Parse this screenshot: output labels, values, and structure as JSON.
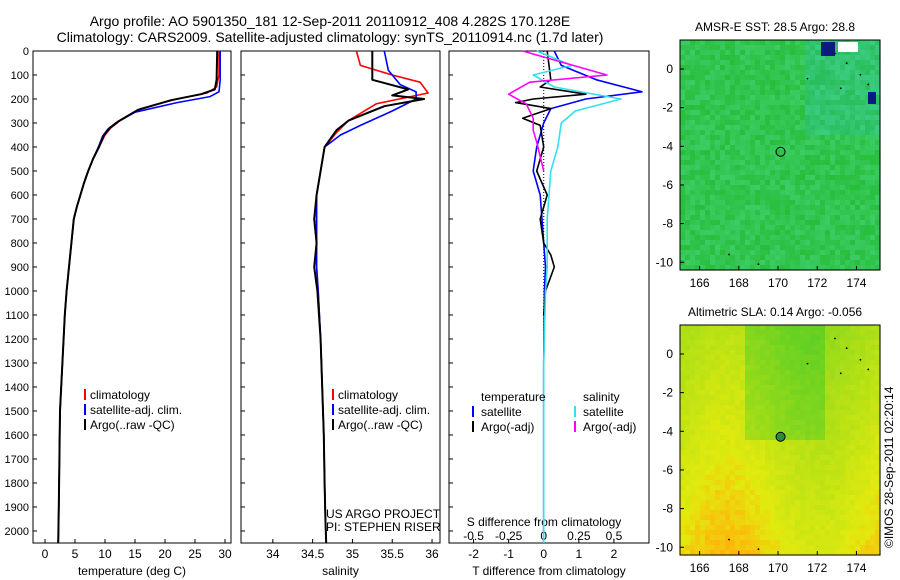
{
  "header": {
    "line1": "Argo profile: AO 5901350_181 12-Sep-2011 20110912_408 4.282S 170.128E",
    "line2": "Climatology: CARS2009. Satellite-adjusted climatology: synTS_20110914.nc (1.7d later)"
  },
  "side_stamp": "©IMOS 28-Sep-2011 02:20:14",
  "colors": {
    "climatology": "#ff0000",
    "satellite": "#0000ff",
    "argo": "#000000",
    "sal_sat": "#33e0f0",
    "sal_argo": "#ff00ff"
  },
  "panel_texts": {
    "project": "US ARGO PROJECT",
    "pi": "PI: STEPHEN RISER",
    "diff_head_temp": "temperature",
    "diff_head_sal": "salinity",
    "diff_sat": "satellite",
    "diff_argo": "Argo(-adj)"
  },
  "chart_data": [
    {
      "type": "line",
      "xlabel": "temperature (deg C)",
      "ylabel": "",
      "xlim": [
        -2,
        31
      ],
      "ylim": [
        2050,
        0
      ],
      "xticks": [
        0,
        5,
        10,
        15,
        20,
        25,
        30
      ],
      "yticks": [
        0,
        100,
        200,
        300,
        400,
        500,
        600,
        700,
        800,
        900,
        1000,
        1100,
        1200,
        1300,
        1400,
        1500,
        1600,
        1700,
        1800,
        1900,
        2000
      ],
      "legend": [
        "climatology",
        "satellite-adj. clim.",
        "Argo(..raw -QC)"
      ],
      "series": [
        {
          "name": "climatology",
          "x": [
            29,
            29,
            28.6,
            27,
            22,
            16,
            12.5,
            11,
            10,
            9,
            8,
            7.2,
            6.5,
            5.9,
            5.3,
            4.8,
            4.4,
            4,
            3.6,
            3.3,
            3.1,
            2.9,
            2.7,
            2.5,
            2.4,
            2.3,
            2.2
          ],
          "y": [
            0,
            100,
            150,
            175,
            200,
            240,
            290,
            320,
            350,
            400,
            450,
            500,
            550,
            600,
            650,
            700,
            800,
            900,
            1000,
            1100,
            1200,
            1300,
            1400,
            1500,
            1700,
            1900,
            2050
          ]
        },
        {
          "name": "satellite-adj. clim.",
          "x": [
            29.2,
            29.2,
            29,
            27.5,
            22,
            15,
            11.8,
            10.5,
            9.6,
            8.9,
            8,
            7.2,
            6.5,
            5.9,
            5.3,
            4.8,
            4.4,
            4,
            3.6,
            3.3,
            3.1,
            2.9,
            2.7,
            2.5,
            2.4,
            2.3,
            2.2
          ],
          "y": [
            0,
            120,
            170,
            190,
            215,
            255,
            300,
            325,
            355,
            400,
            450,
            500,
            550,
            600,
            650,
            700,
            800,
            900,
            1000,
            1100,
            1200,
            1300,
            1400,
            1500,
            1700,
            1900,
            2050
          ]
        },
        {
          "name": "Argo(..raw -QC)",
          "x": [
            28.7,
            28.6,
            28.3,
            26,
            21,
            15.5,
            12.3,
            10.8,
            9.8,
            9,
            8,
            7.2,
            6.5,
            5.9,
            5.3,
            4.8,
            4.4,
            4,
            3.6,
            3.3,
            3.1,
            2.9,
            2.7,
            2.5,
            2.4,
            2.3,
            2.2
          ],
          "y": [
            0,
            120,
            160,
            180,
            205,
            245,
            292,
            320,
            352,
            400,
            450,
            500,
            550,
            600,
            650,
            700,
            800,
            900,
            1000,
            1100,
            1200,
            1300,
            1400,
            1500,
            1700,
            1900,
            2050
          ]
        }
      ]
    },
    {
      "type": "line",
      "xlabel": "salinity",
      "xlim": [
        33.6,
        36.1
      ],
      "ylim": [
        2050,
        0
      ],
      "xticks": [
        34,
        34.5,
        35,
        35.5,
        36
      ],
      "legend": [
        "climatology",
        "satellite-adj. clim.",
        "Argo(..raw -QC)"
      ],
      "series": [
        {
          "name": "climatology",
          "x": [
            35.05,
            35.1,
            35.5,
            35.85,
            35.95,
            35.3,
            34.95,
            34.8,
            34.65,
            34.6,
            34.55,
            34.55,
            34.55,
            34.55,
            34.57,
            34.6,
            34.62,
            34.64,
            34.65,
            34.66,
            34.67
          ],
          "y": [
            0,
            60,
            100,
            130,
            175,
            220,
            290,
            340,
            400,
            500,
            600,
            700,
            800,
            900,
            1000,
            1200,
            1400,
            1600,
            1800,
            1950,
            2050
          ]
        },
        {
          "name": "satellite-adj. clim.",
          "x": [
            35.4,
            35.45,
            35.6,
            35.8,
            35.8,
            35.5,
            35.1,
            34.85,
            34.65,
            34.6,
            34.55,
            34.55,
            34.55,
            34.55,
            34.57,
            34.6,
            34.62,
            34.64,
            34.65,
            34.66,
            34.67
          ],
          "y": [
            0,
            80,
            140,
            170,
            200,
            250,
            310,
            350,
            400,
            500,
            600,
            700,
            800,
            900,
            1000,
            1200,
            1400,
            1600,
            1800,
            1950,
            2050
          ]
        },
        {
          "name": "Argo(..raw -QC)",
          "x": [
            35.25,
            35.25,
            35.7,
            35.5,
            35.9,
            35.4,
            34.95,
            34.8,
            34.65,
            34.6,
            34.55,
            34.52,
            34.55,
            34.52,
            34.56,
            34.6,
            34.62,
            34.64,
            34.65,
            34.66,
            34.67
          ],
          "y": [
            0,
            120,
            160,
            185,
            200,
            230,
            290,
            330,
            400,
            500,
            600,
            700,
            800,
            900,
            1000,
            1200,
            1400,
            1600,
            1800,
            1950,
            2050
          ]
        }
      ]
    },
    {
      "type": "line",
      "xlabel": "T difference from climatology",
      "xlabel2": "S difference from climatology",
      "xlim": [
        -2.7,
        3.0
      ],
      "ylim": [
        2050,
        0
      ],
      "xticks": [
        -2,
        -1,
        0,
        1,
        2
      ],
      "xticks_s": [
        "-0.5",
        "-0.25",
        "0",
        "0.25",
        "0.5"
      ],
      "legend": [
        "satellite",
        "Argo(-adj)",
        "satellite",
        "Argo(-adj)"
      ],
      "series": [
        {
          "name": "satellite",
          "x": [
            0.3,
            0.5,
            1.5,
            2.8,
            1.2,
            0.2,
            0,
            -0.2,
            -0.3,
            -0.1,
            -0.05,
            0,
            0.05,
            0.02,
            0,
            0,
            0
          ],
          "y": [
            0,
            60,
            120,
            170,
            200,
            240,
            300,
            400,
            500,
            600,
            700,
            800,
            900,
            1000,
            1300,
            1600,
            2050
          ]
        },
        {
          "name": "Argo(-adj)",
          "x": [
            0.1,
            0.2,
            -0.1,
            1.2,
            -0.3,
            -0.8,
            0.2,
            -0.6,
            -0.1,
            0,
            -0.2,
            0.1,
            -0.1,
            0,
            0.2,
            0.3,
            0.05,
            0
          ],
          "y": [
            0,
            120,
            150,
            180,
            200,
            215,
            240,
            280,
            310,
            400,
            500,
            600,
            700,
            800,
            850,
            900,
            1000,
            1100
          ]
        },
        {
          "name": "satellite",
          "x": [
            -0.2,
            0.8,
            -0.3,
            0.3,
            2.2,
            0.9,
            0.5,
            0.4,
            0.2,
            0.1,
            0.1,
            0.05,
            0,
            0,
            0
          ],
          "y": [
            0,
            60,
            100,
            150,
            200,
            250,
            300,
            400,
            500,
            700,
            900,
            1000,
            1300,
            1700,
            2050
          ]
        },
        {
          "name": "Argo(-adj)",
          "x": [
            -0.6,
            1.8,
            -0.4,
            -1,
            -0.5,
            -0.3,
            -0.3,
            -0.2,
            0
          ],
          "y": [
            0,
            100,
            130,
            180,
            220,
            280,
            330,
            380,
            500
          ]
        }
      ]
    }
  ],
  "maps": [
    {
      "title": "AMSR-E SST: 28.5 Argo: 28.8",
      "xticks": [
        "166",
        "168",
        "170",
        "172",
        "174"
      ],
      "yticks": [
        "0",
        "-2",
        "-4",
        "-6",
        "-8",
        "-10"
      ]
    },
    {
      "title": "Altimetric SLA: 0.14 Argo: -0.056",
      "xticks": [
        "166",
        "168",
        "170",
        "172",
        "174"
      ],
      "yticks": [
        "0",
        "-2",
        "-4",
        "-6",
        "-8",
        "-10"
      ]
    }
  ]
}
